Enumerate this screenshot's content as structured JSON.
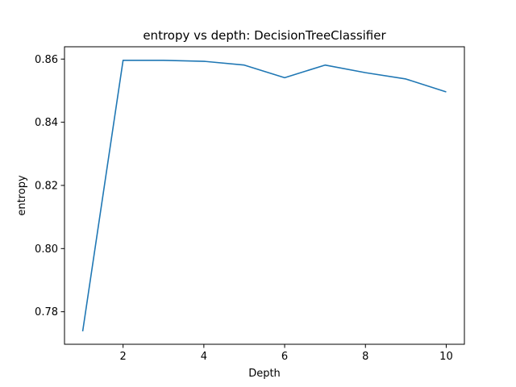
{
  "chart_data": {
    "type": "line",
    "title": "entropy vs depth: DecisionTreeClassifier",
    "xlabel": "Depth",
    "ylabel": "entropy",
    "xlim": [
      0.55,
      10.45
    ],
    "ylim": [
      0.7697,
      0.8639
    ],
    "xticks": [
      2,
      4,
      6,
      8,
      10
    ],
    "xtick_labels": [
      "2",
      "4",
      "6",
      "8",
      "10"
    ],
    "yticks": [
      0.78,
      0.8,
      0.82,
      0.84,
      0.86
    ],
    "ytick_labels": [
      "0.78",
      "0.80",
      "0.82",
      "0.84",
      "0.86"
    ],
    "grid": false,
    "legend": "none",
    "series": [
      {
        "color": "#1f77b4",
        "x": [
          1,
          2,
          3,
          4,
          5,
          6,
          7,
          8,
          9,
          10
        ],
        "values": [
          0.7738,
          0.8596,
          0.8596,
          0.8593,
          0.8581,
          0.8541,
          0.8581,
          0.8557,
          0.8537,
          0.8496
        ]
      }
    ]
  }
}
